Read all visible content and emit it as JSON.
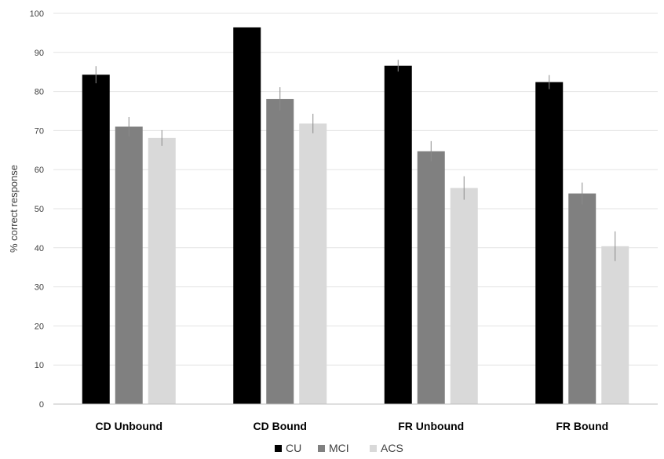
{
  "chart_data": {
    "type": "bar",
    "ylabel": "% correct response",
    "xlabel": "",
    "ylim": [
      0,
      100
    ],
    "yticks": [
      0,
      10,
      20,
      30,
      40,
      50,
      60,
      70,
      80,
      90,
      100
    ],
    "grid": true,
    "legend_position": "bottom",
    "categories": [
      "CD Unbound",
      "CD Bound",
      "FR Unbound",
      "FR Bound"
    ],
    "series": [
      {
        "name": "CU",
        "color": "#000000",
        "values": [
          84.3,
          96.4,
          86.6,
          82.4
        ],
        "errors": [
          2.2,
          0.0,
          1.5,
          1.8
        ]
      },
      {
        "name": "MCI",
        "color": "#808080",
        "values": [
          71.0,
          78.1,
          64.7,
          53.9
        ],
        "errors": [
          2.5,
          3.0,
          2.6,
          2.8
        ]
      },
      {
        "name": "ACS",
        "color": "#d9d9d9",
        "values": [
          68.1,
          71.8,
          55.3,
          40.4
        ],
        "errors": [
          2.0,
          2.5,
          3.0,
          3.8
        ]
      }
    ]
  }
}
